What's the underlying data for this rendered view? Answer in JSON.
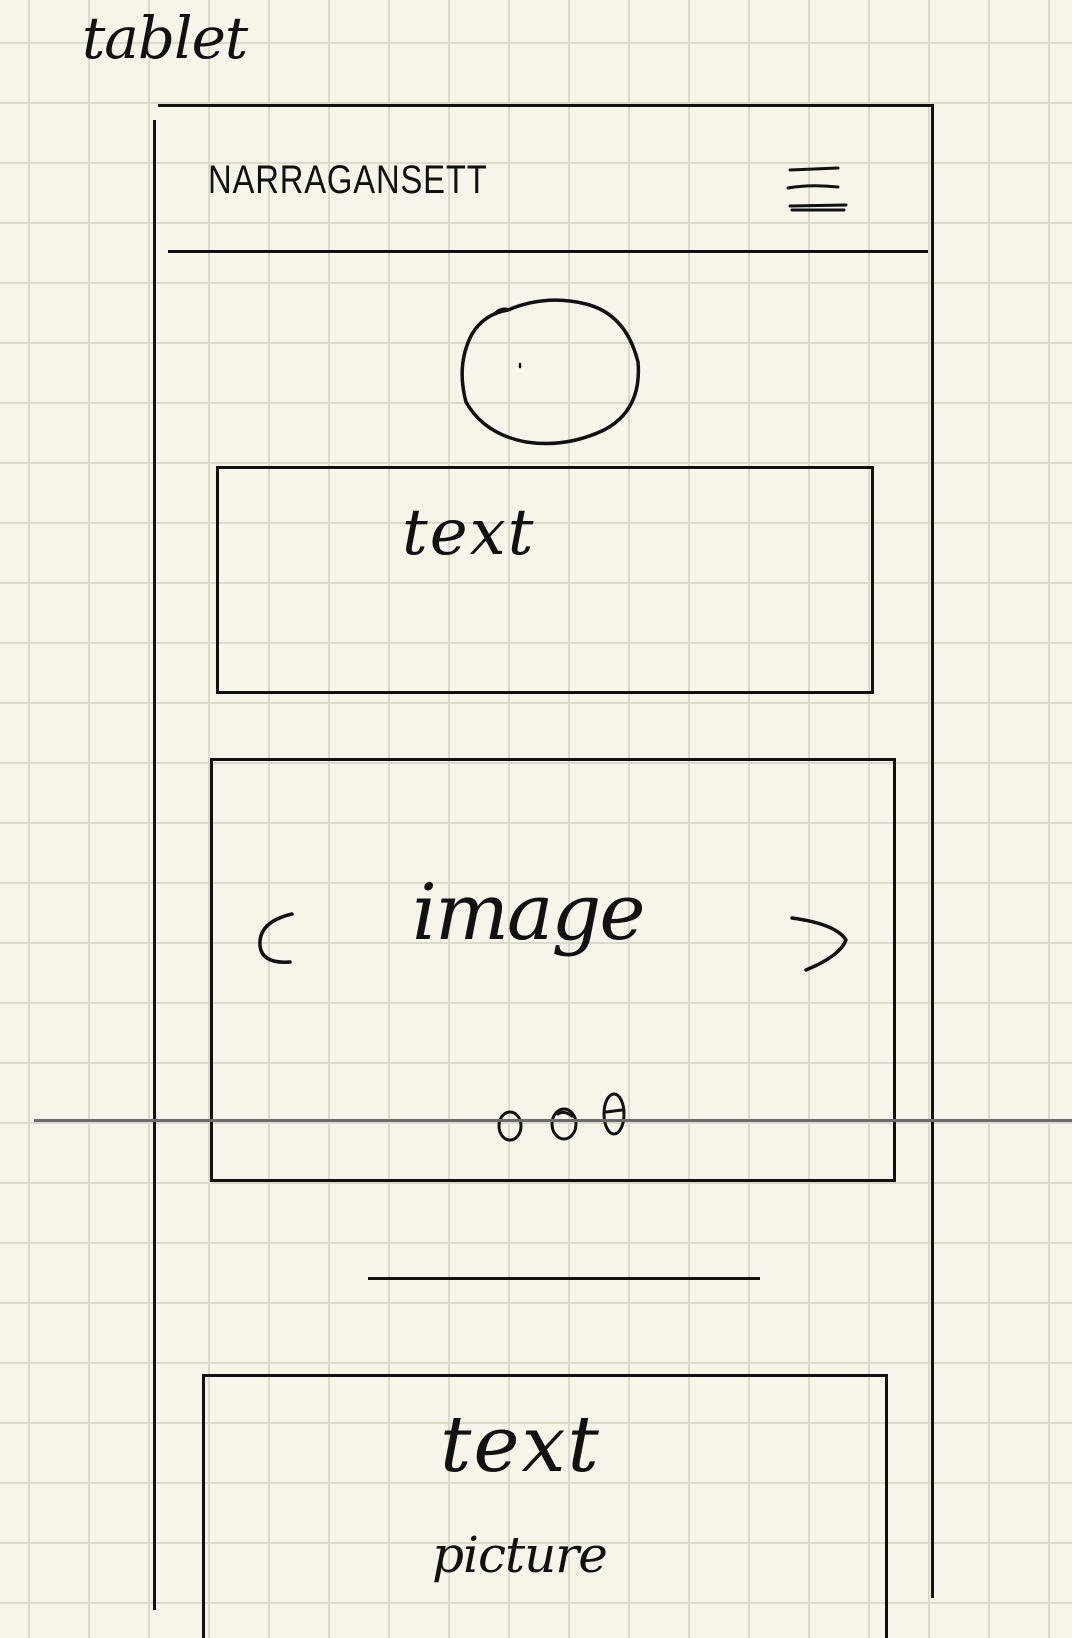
{
  "sheet_label": "tablet",
  "header": {
    "brand": "NARRAGANSETT",
    "menu_icon": "hamburger-menu-icon"
  },
  "hero": {
    "avatar_icon": "circle-avatar-placeholder"
  },
  "text_block": {
    "label": "text"
  },
  "carousel": {
    "label": "image",
    "prev_glyph": "<",
    "next_glyph": ">",
    "dot_count": 3
  },
  "bottom_card": {
    "title": "text",
    "subtitle": "picture"
  }
}
